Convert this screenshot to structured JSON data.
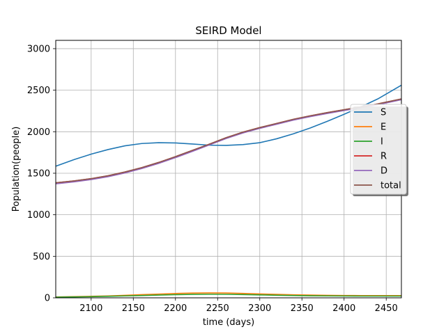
{
  "chart_data": {
    "type": "line",
    "title": "SEIRD Model",
    "xlabel": "time (days)",
    "ylabel": "Population(people)",
    "xlim": [
      2058,
      2468
    ],
    "ylim": [
      0,
      3100
    ],
    "xticks": [
      2100,
      2150,
      2200,
      2250,
      2300,
      2350,
      2400,
      2450
    ],
    "yticks": [
      0,
      500,
      1000,
      1500,
      2000,
      2500,
      3000
    ],
    "grid": true,
    "legend_position": "right",
    "x": [
      2058,
      2080,
      2100,
      2120,
      2140,
      2160,
      2180,
      2200,
      2220,
      2240,
      2260,
      2280,
      2300,
      2320,
      2340,
      2360,
      2380,
      2400,
      2420,
      2440,
      2468
    ],
    "series": [
      {
        "name": "S",
        "color": "#1f77b4",
        "values": [
          1585,
          1665,
          1730,
          1785,
          1830,
          1858,
          1868,
          1865,
          1852,
          1838,
          1835,
          1845,
          1868,
          1915,
          1975,
          2045,
          2125,
          2210,
          2300,
          2395,
          2560
        ]
      },
      {
        "name": "E",
        "color": "#ff7f0e",
        "values": [
          10,
          14,
          18,
          23,
          30,
          38,
          45,
          52,
          57,
          59,
          58,
          53,
          47,
          41,
          36,
          33,
          30,
          28,
          27,
          27,
          27
        ]
      },
      {
        "name": "I",
        "color": "#2ca02c",
        "values": [
          8,
          11,
          14,
          18,
          23,
          28,
          33,
          38,
          41,
          43,
          42,
          39,
          35,
          31,
          28,
          25,
          23,
          22,
          21,
          21,
          21
        ]
      },
      {
        "name": "R",
        "color": "#d62728",
        "values": [
          1385,
          1408,
          1435,
          1470,
          1515,
          1568,
          1630,
          1700,
          1775,
          1850,
          1928,
          1995,
          2050,
          2100,
          2150,
          2192,
          2230,
          2265,
          2300,
          2335,
          2395
        ]
      },
      {
        "name": "D",
        "color": "#9467bd",
        "values": [
          1372,
          1396,
          1424,
          1458,
          1503,
          1556,
          1618,
          1688,
          1763,
          1840,
          1918,
          1985,
          2040,
          2090,
          2140,
          2182,
          2220,
          2255,
          2290,
          2325,
          2385
        ]
      },
      {
        "name": "total",
        "color": "#8c564b",
        "values": [
          1385,
          1408,
          1435,
          1470,
          1515,
          1568,
          1630,
          1700,
          1775,
          1850,
          1928,
          1995,
          2050,
          2100,
          2150,
          2192,
          2230,
          2265,
          2300,
          2335,
          2395
        ]
      }
    ]
  }
}
